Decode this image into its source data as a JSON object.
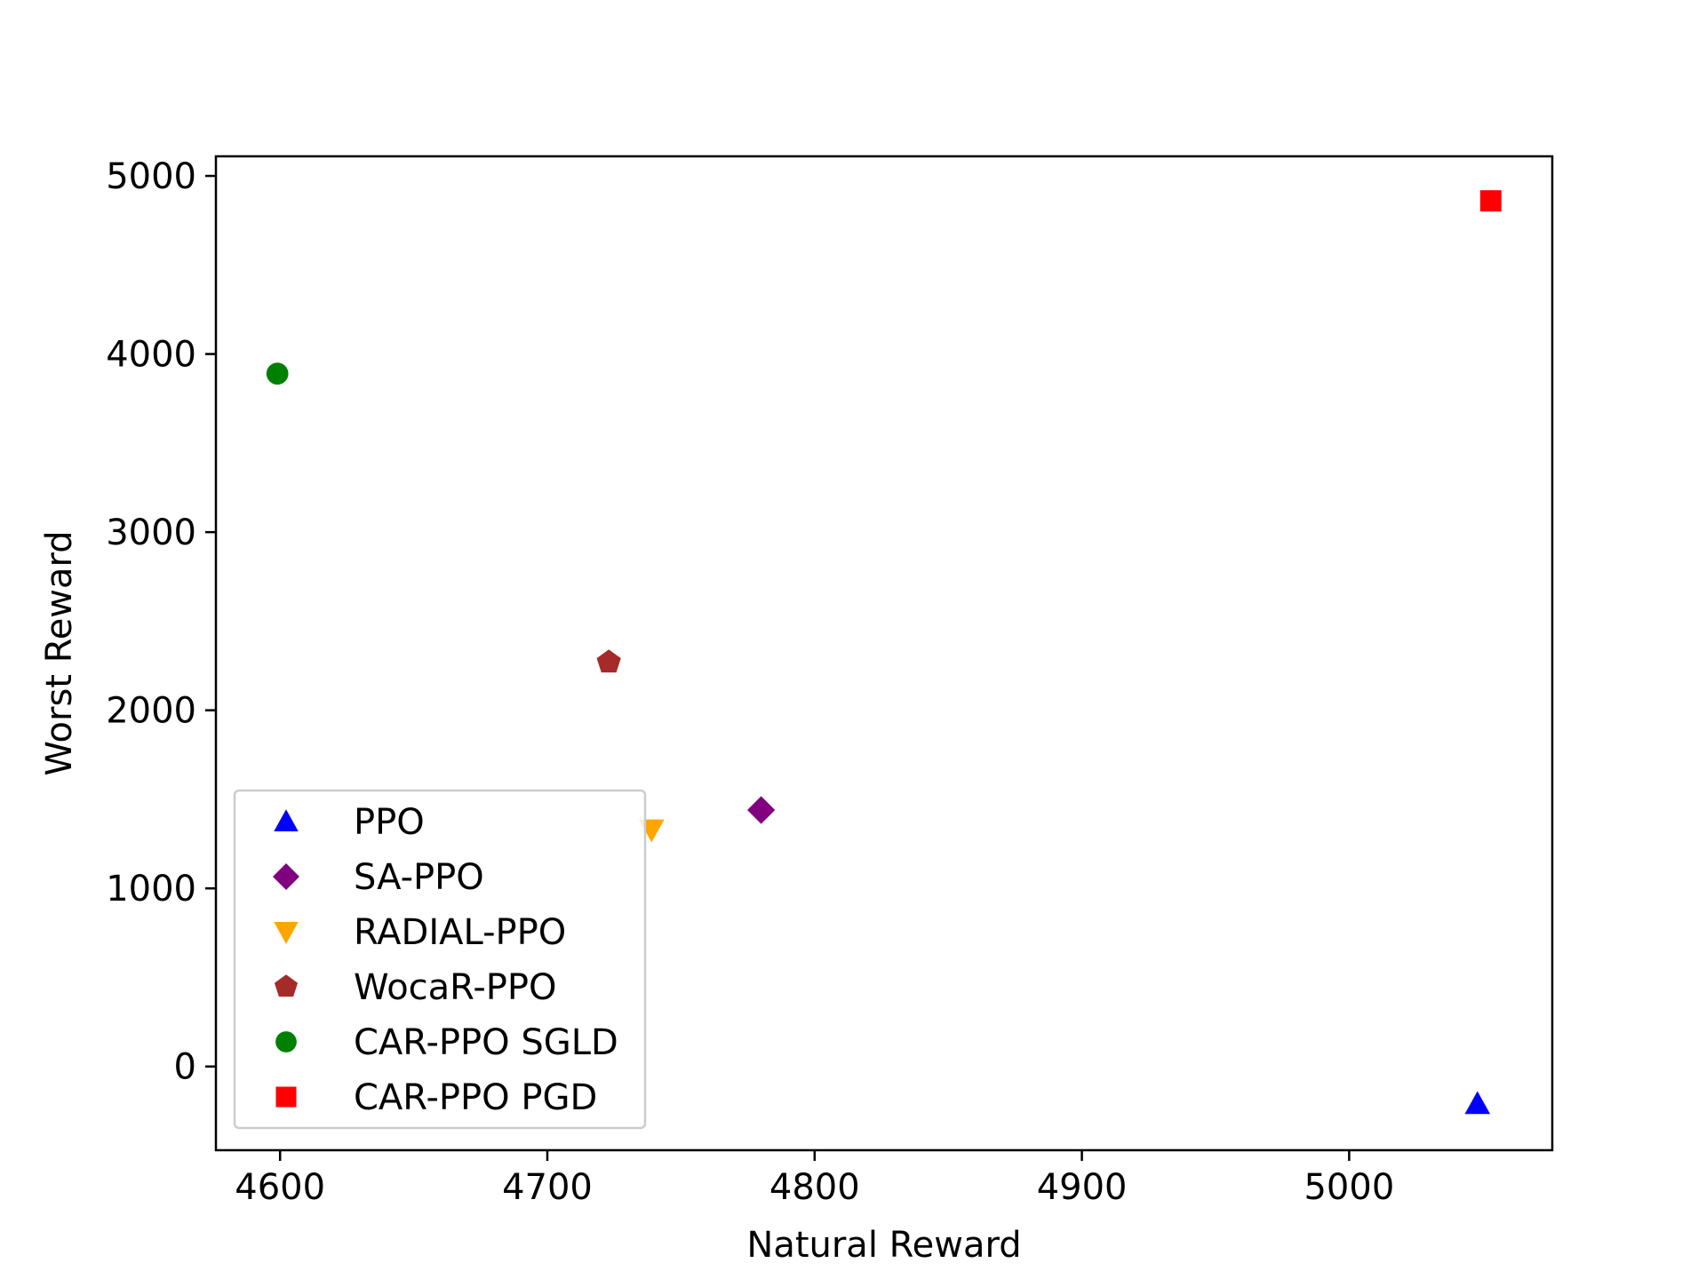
{
  "chart_data": {
    "type": "scatter",
    "title": "",
    "xlabel": "Natural Reward",
    "ylabel": "Worst Reward",
    "xlim": [
      4576,
      5076
    ],
    "ylim": [
      -470,
      5110
    ],
    "xticks": [
      4600,
      4700,
      4800,
      4900,
      5000
    ],
    "yticks": [
      0,
      1000,
      2000,
      3000,
      4000,
      5000
    ],
    "grid": false,
    "legend_position": "lower-left",
    "series": [
      {
        "name": "PPO",
        "marker": "triangle-up",
        "color": "#0000ff",
        "x": 5048,
        "y": -210
      },
      {
        "name": "SA-PPO",
        "marker": "diamond",
        "color": "#800080",
        "x": 4780,
        "y": 1440
      },
      {
        "name": "RADIAL-PPO",
        "marker": "triangle-down",
        "color": "#ffa500",
        "x": 4739,
        "y": 1330
      },
      {
        "name": "WocaR-PPO",
        "marker": "pentagon",
        "color": "#a52a2a",
        "x": 4723,
        "y": 2270
      },
      {
        "name": "CAR-PPO SGLD",
        "marker": "circle",
        "color": "#008000",
        "x": 4599,
        "y": 3890
      },
      {
        "name": "CAR-PPO PGD",
        "marker": "square",
        "color": "#ff0000",
        "x": 5053,
        "y": 4860
      }
    ]
  }
}
